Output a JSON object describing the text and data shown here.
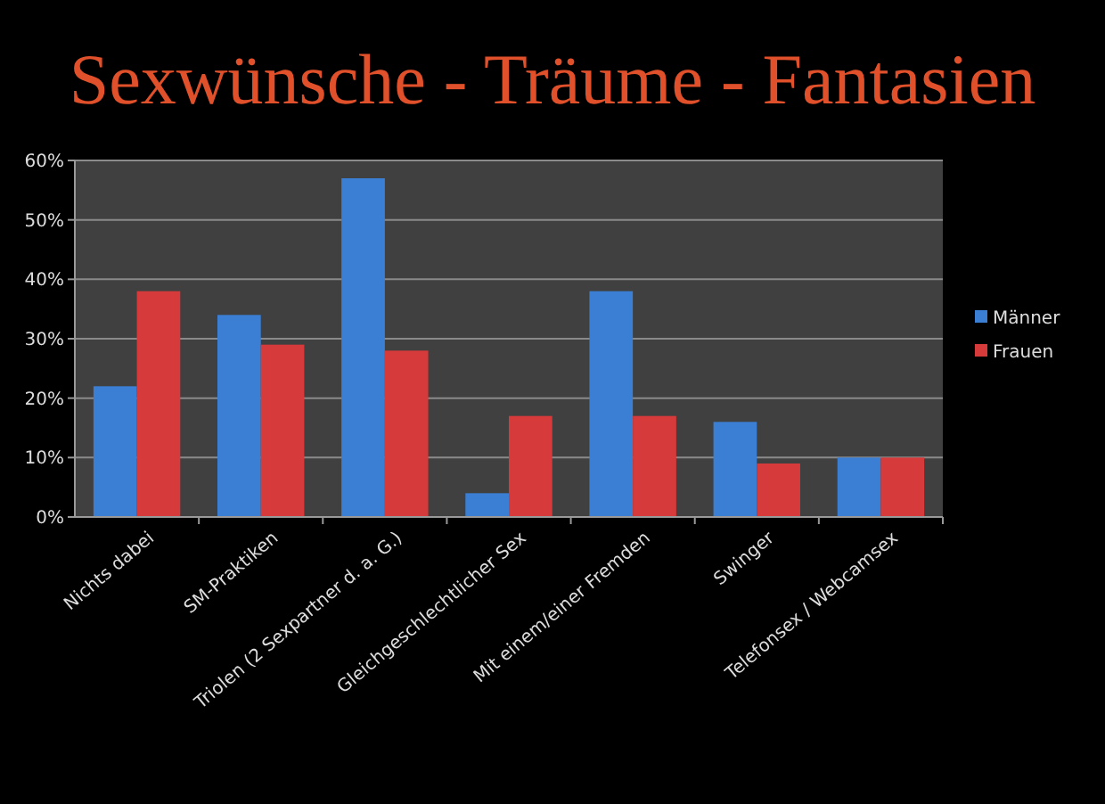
{
  "chart_data": {
    "type": "bar",
    "title": "Sexwünsche - Träume - Fantasien",
    "categories": [
      "Nichts dabei",
      "SM-Praktiken",
      "Triolen (2 Sexpartner d. a. G.)",
      "Gleichgeschlechtlicher Sex",
      "Mit einem/einer Fremden",
      "Swinger",
      "Telefonsex / Webcamsex"
    ],
    "series": [
      {
        "name": "Männer",
        "color": "#3b7fd4",
        "values": [
          22,
          34,
          57,
          4,
          38,
          16,
          10
        ]
      },
      {
        "name": "Frauen",
        "color": "#d63a3a",
        "values": [
          38,
          29,
          28,
          17,
          17,
          9,
          10
        ]
      }
    ],
    "ylim": [
      0,
      60
    ],
    "yticks": [
      {
        "value": 0,
        "label": "0%"
      },
      {
        "value": 10,
        "label": "10%"
      },
      {
        "value": 20,
        "label": "20%"
      },
      {
        "value": 30,
        "label": "30%"
      },
      {
        "value": 40,
        "label": "40%"
      },
      {
        "value": 50,
        "label": "50%"
      },
      {
        "value": 60,
        "label": "60%"
      }
    ],
    "grid": "y",
    "legend": "right"
  }
}
